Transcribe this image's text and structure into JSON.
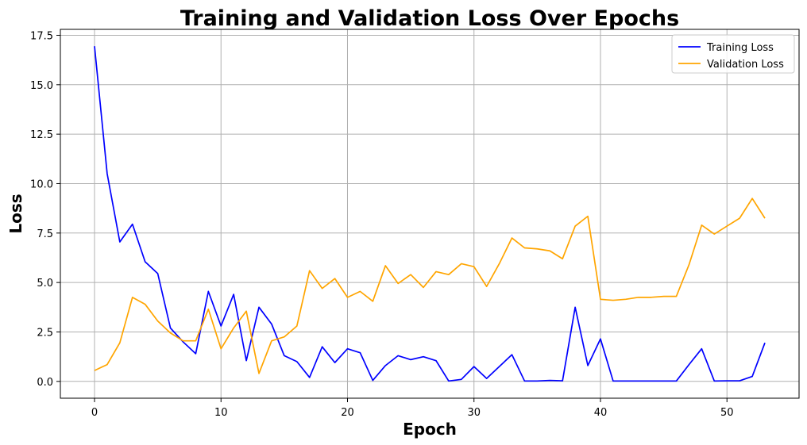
{
  "chart_data": {
    "type": "line",
    "title": "Training and Validation Loss Over Epochs",
    "xlabel": "Epoch",
    "ylabel": "Loss",
    "xlim": [
      -2.7,
      55.7
    ],
    "ylim": [
      -0.85,
      17.8
    ],
    "x_ticks": [
      0,
      10,
      20,
      30,
      40,
      50
    ],
    "x_tick_labels": [
      "0",
      "10",
      "20",
      "30",
      "40",
      "50"
    ],
    "y_ticks": [
      0.0,
      2.5,
      5.0,
      7.5,
      10.0,
      12.5,
      15.0,
      17.5
    ],
    "y_tick_labels": [
      "0.0",
      "2.5",
      "5.0",
      "7.5",
      "10.0",
      "12.5",
      "15.0",
      "17.5"
    ],
    "grid": true,
    "legend_position": "top-right",
    "x": [
      0,
      1,
      2,
      3,
      4,
      5,
      6,
      7,
      8,
      9,
      10,
      11,
      12,
      13,
      14,
      15,
      16,
      17,
      18,
      19,
      20,
      21,
      22,
      23,
      24,
      25,
      26,
      27,
      28,
      29,
      30,
      31,
      32,
      33,
      34,
      35,
      36,
      37,
      38,
      39,
      40,
      41,
      42,
      43,
      44,
      45,
      46,
      47,
      48,
      49,
      50,
      51,
      52,
      53
    ],
    "series": [
      {
        "name": "Training Loss",
        "color": "#0000ff",
        "values": [
          16.95,
          10.5,
          7.05,
          7.95,
          6.05,
          5.45,
          2.7,
          2.0,
          1.4,
          4.55,
          2.8,
          4.4,
          1.05,
          3.75,
          2.9,
          1.3,
          1.0,
          0.2,
          1.75,
          0.95,
          1.65,
          1.45,
          0.05,
          0.8,
          1.3,
          1.1,
          1.25,
          1.05,
          0.02,
          0.1,
          0.75,
          0.15,
          0.75,
          1.35,
          0.02,
          0.02,
          0.05,
          0.03,
          3.75,
          0.8,
          2.15,
          0.02,
          0.02,
          0.02,
          0.02,
          0.02,
          0.02,
          0.85,
          1.65,
          0.02,
          0.03,
          0.03,
          0.25,
          1.95
        ]
      },
      {
        "name": "Validation Loss",
        "color": "#ffa500",
        "values": [
          0.55,
          0.85,
          1.95,
          4.25,
          3.9,
          3.05,
          2.45,
          2.05,
          2.05,
          3.65,
          1.65,
          2.7,
          3.55,
          0.4,
          2.05,
          2.25,
          2.8,
          5.6,
          4.7,
          5.2,
          4.25,
          4.55,
          4.05,
          5.85,
          4.95,
          5.4,
          4.75,
          5.55,
          5.4,
          5.95,
          5.8,
          4.8,
          5.95,
          7.25,
          6.75,
          6.7,
          6.6,
          6.2,
          7.85,
          8.35,
          4.15,
          4.1,
          4.15,
          4.25,
          4.25,
          4.3,
          4.3,
          5.9,
          7.9,
          7.45,
          7.85,
          8.25,
          9.25,
          8.25
        ]
      }
    ]
  }
}
